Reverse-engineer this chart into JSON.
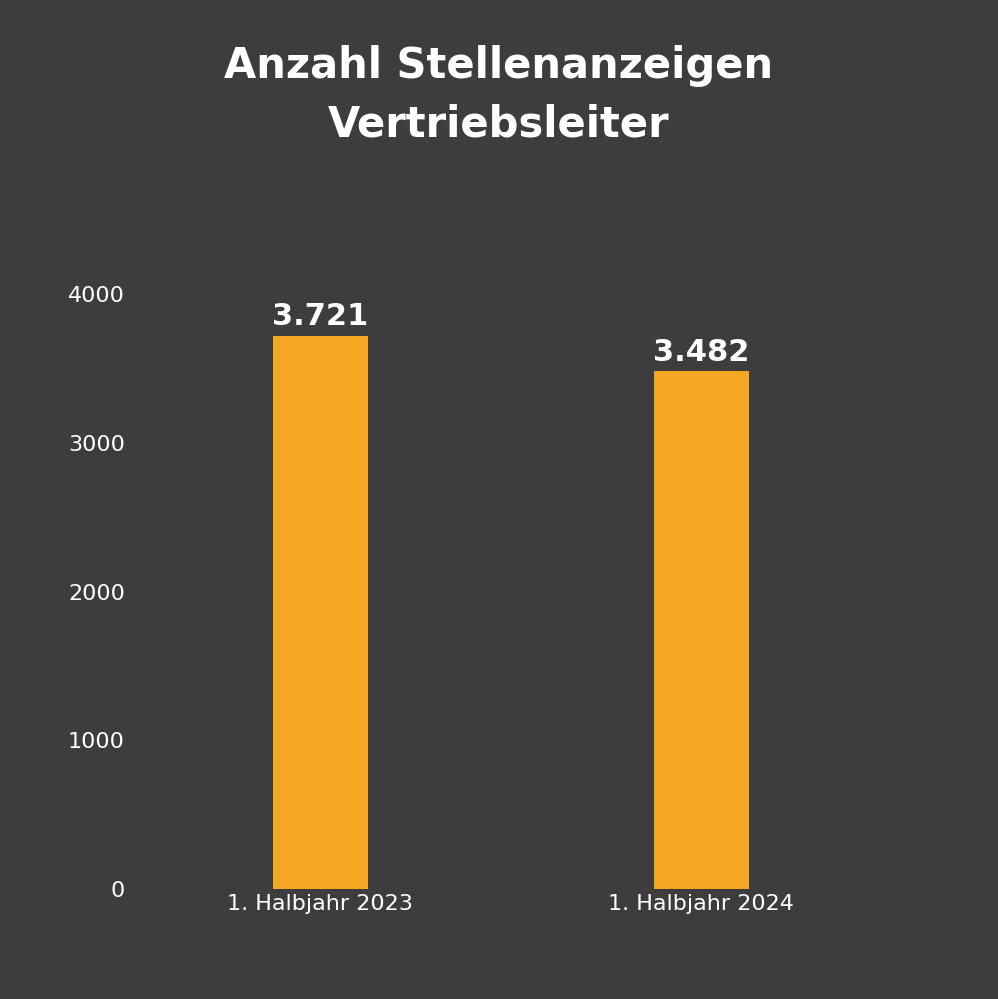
{
  "categories": [
    "1. Halbjahr 2023",
    "1. Halbjahr 2024"
  ],
  "values": [
    3721,
    3482
  ],
  "value_labels": [
    "3.721",
    "3.482"
  ],
  "bar_color": "#F5A623",
  "background_color": "#3d3d3d",
  "text_color": "#ffffff",
  "title_line1": "Anzahl Stellenanzeigen",
  "title_line2": "Vertriebsleiter",
  "title_fontsize": 30,
  "tick_fontsize": 16,
  "label_fontsize": 16,
  "value_fontsize": 22,
  "ylim": [
    0,
    4300
  ],
  "yticks": [
    0,
    1000,
    2000,
    3000,
    4000
  ],
  "bar_width": 0.25
}
